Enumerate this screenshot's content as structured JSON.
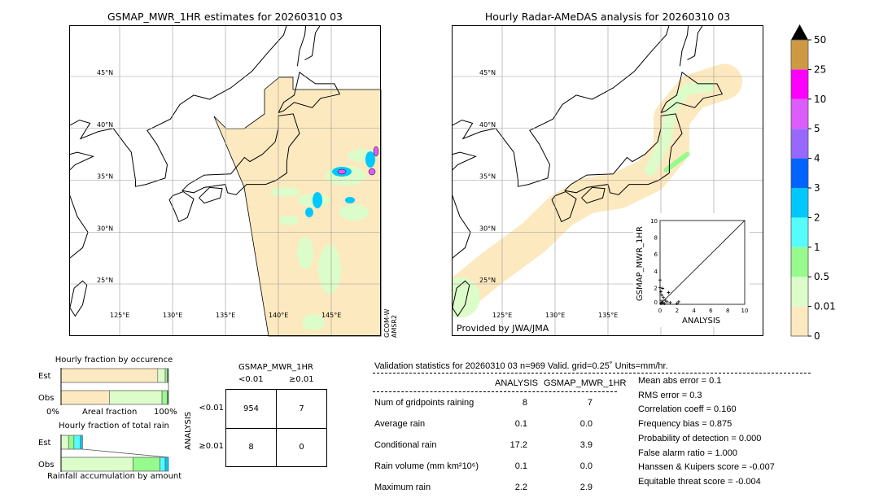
{
  "chart_data": [
    {
      "type": "map",
      "title": "GSMAP_MWR_1HR estimates for 20260310 03",
      "lon_ticks": [
        "125°E",
        "130°E",
        "135°E",
        "140°E",
        "145°E"
      ],
      "lat_ticks": [
        "45°N",
        "40°N",
        "35°N",
        "30°N",
        "25°N"
      ],
      "side_label": [
        "GCOM-W",
        "AMSR2"
      ]
    },
    {
      "type": "map",
      "title": "Hourly Radar-AMeDAS analysis for 20260310 03",
      "lon_ticks": [
        "125°E",
        "130°E",
        "135°E"
      ],
      "lat_ticks": [
        "45°N",
        "40°N",
        "35°N",
        "30°N",
        "25°N"
      ],
      "credit": "Provided by JWA/JMA",
      "inset": {
        "type": "scatter",
        "xlabel": "ANALYSIS",
        "ylabel": "GSMAP_MWR_1HR",
        "xlim": [
          0,
          10
        ],
        "ylim": [
          0,
          10
        ],
        "ticks": [
          "0",
          "2",
          "4",
          "6",
          "8",
          "10"
        ],
        "points": [
          [
            0,
            2.9
          ],
          [
            0,
            2.0
          ],
          [
            0.3,
            1.9
          ],
          [
            0.1,
            1.5
          ],
          [
            0.2,
            1.1
          ],
          [
            1.0,
            1.4
          ],
          [
            0.4,
            0.8
          ],
          [
            0.6,
            0.5
          ],
          [
            0.2,
            0.4
          ],
          [
            0.8,
            0.3
          ],
          [
            1.2,
            0.2
          ],
          [
            2.2,
            0.3
          ],
          [
            2.0,
            0.1
          ],
          [
            0.1,
            0.1
          ],
          [
            0.5,
            0.1
          ],
          [
            0.3,
            0.2
          ]
        ]
      }
    },
    {
      "type": "colorbar",
      "ticks": [
        "0",
        "0.01",
        "0.5",
        "1",
        "2",
        "3",
        "4",
        "5",
        "10",
        "25",
        "50"
      ],
      "colors": [
        "#fde9bf",
        "#dcfcc9",
        "#96fa8c",
        "#56fcfc",
        "#00c8fc",
        "#0063fc",
        "#9768fc",
        "#dc5cfc",
        "#fc00fc",
        "#cd9a43"
      ],
      "extend_color": "#000000"
    },
    {
      "type": "bar",
      "title": "Hourly fraction by occurence",
      "xlabel": "Areal fraction",
      "x_ticks": [
        "0%",
        "100%"
      ],
      "categories": [
        "Est",
        "Obs"
      ],
      "series": [
        {
          "values": [
            [
              0.9,
              "#fde9bf"
            ],
            [
              0.07,
              "#dcfcc9"
            ],
            [
              0.02,
              "#96fa8c"
            ],
            [
              0.01,
              "#2f4f2f"
            ]
          ]
        },
        {
          "values": [
            [
              0.45,
              "#fde9bf"
            ],
            [
              0.49,
              "#dcfcc9"
            ],
            [
              0.05,
              "#96fa8c"
            ],
            [
              0.01,
              "#2f4f2f"
            ]
          ]
        }
      ]
    },
    {
      "type": "bar",
      "title": "Hourly fraction of total rain",
      "xlabel": "Rainfall accumulation by amount",
      "categories": [
        "Est",
        "Obs"
      ],
      "series": [
        {
          "values": [
            [
              0.07,
              "#dcfcc9"
            ],
            [
              0.05,
              "#96fa8c"
            ],
            [
              0.06,
              "#56fcfc"
            ],
            [
              0.02,
              "#00c8fc"
            ]
          ]
        },
        {
          "values": [
            [
              0.67,
              "#dcfcc9"
            ],
            [
              0.25,
              "#96fa8c"
            ],
            [
              0.05,
              "#56fcfc"
            ],
            [
              0.03,
              "#00c8fc"
            ]
          ]
        }
      ]
    },
    {
      "type": "table",
      "title": "GSMAP_MWR_1HR",
      "col_labels": [
        "<0.01",
        "≥0.01"
      ],
      "row_title": "ANALYSIS",
      "row_labels": [
        "<0.01",
        "≥0.01"
      ],
      "cells": [
        [
          "954",
          "7"
        ],
        [
          "8",
          "0"
        ]
      ]
    }
  ],
  "stats": {
    "header": "Validation statistics for 20260310 03  n=969 Valid. grid=0.25˚ Units=mm/hr.",
    "col1": "ANALYSIS",
    "col2": "GSMAP_MWR_1HR",
    "rows": [
      {
        "label": "Num of gridpoints raining",
        "a": "8",
        "b": "7"
      },
      {
        "label": "Average rain",
        "a": "0.1",
        "b": "0.0"
      },
      {
        "label": "Conditional rain",
        "a": "17.2",
        "b": "3.9"
      },
      {
        "label": "Rain volume (mm km²10⁶)",
        "a": "0.1",
        "b": "0.0"
      },
      {
        "label": "Maximum rain",
        "a": "2.2",
        "b": "2.9"
      }
    ],
    "scores": [
      "Mean abs error =    0.1",
      "RMS error =    0.3",
      "Correlation coeff =  0.160",
      "Frequency bias =  0.875",
      "Probability of detection =  0.000",
      "False alarm ratio =  1.000",
      "Hanssen & Kuipers score = -0.007",
      "Equitable threat score = -0.004"
    ]
  }
}
